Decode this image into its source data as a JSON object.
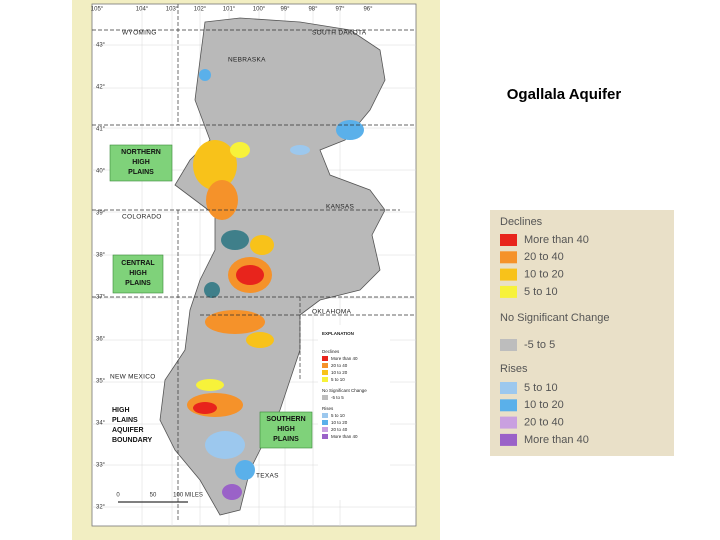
{
  "title": "Ogallala Aquifer",
  "map": {
    "longitude_ticks": [
      "105°",
      "104°",
      "103°",
      "102°",
      "101°",
      "100°",
      "99°",
      "98°",
      "97°",
      "96°"
    ],
    "latitude_ticks": [
      "43°",
      "42°",
      "41°",
      "40°",
      "39°",
      "38°",
      "37°",
      "36°",
      "35°",
      "34°",
      "33°",
      "32°"
    ],
    "state_labels": [
      "WYOMING",
      "SOUTH DAKOTA",
      "NEBRASKA",
      "KANSAS",
      "COLORADO",
      "OKLAHOMA",
      "NEW MEXICO",
      "TEXAS"
    ],
    "region_labels": {
      "northern": [
        "NORTHERN",
        "HIGH",
        "PLAINS"
      ],
      "central": [
        "CENTRAL",
        "HIGH",
        "PLAINS"
      ],
      "southern": [
        "SOUTHERN",
        "HIGH",
        "PLAINS"
      ],
      "boundary": [
        "HIGH",
        "PLAINS",
        "AQUIFER",
        "BOUNDARY"
      ]
    },
    "explanation": "EXPLANATION",
    "scale": [
      "0",
      "50",
      "100 MILES"
    ]
  },
  "legend": {
    "declines_heading": "Declines",
    "declines": [
      {
        "label": "More than 40",
        "color": "#e8241c"
      },
      {
        "label": "20 to 40",
        "color": "#f5922a"
      },
      {
        "label": "10 to 20",
        "color": "#f8c21a"
      },
      {
        "label": "5 to 10",
        "color": "#f7f23a"
      }
    ],
    "no_change_heading": "No Significant Change",
    "no_change": [
      {
        "label": "-5 to 5",
        "color": "#bdbdbd"
      }
    ],
    "rises_heading": "Rises",
    "rises": [
      {
        "label": "5 to 10",
        "color": "#9cc8ee"
      },
      {
        "label": "10 to 20",
        "color": "#5ab0ea"
      },
      {
        "label": "20 to 40",
        "color": "#c9a0e0"
      },
      {
        "label": "More than 40",
        "color": "#9a62c8"
      }
    ]
  }
}
